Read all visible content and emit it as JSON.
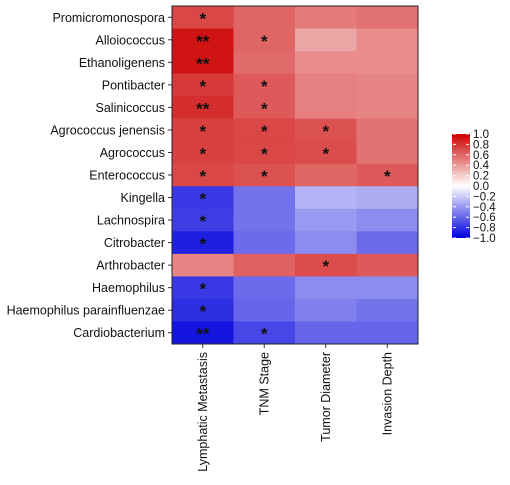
{
  "chart_data": {
    "type": "heatmap",
    "title": "",
    "xlabel": "",
    "ylabel": "",
    "columns": [
      "Lymphatic Metastasis",
      "TNM Stage",
      "Tumor Diameter",
      "Invasion Depth"
    ],
    "rows": [
      "Promicromonospora",
      "Alloiococcus",
      "Ethanoligenens",
      "Pontibacter",
      "Salinicoccus",
      "Agrococcus jenensis",
      "Agrococcus",
      "Enterococcus",
      "Kingella",
      "Lachnospira",
      "Citrobacter",
      "Arthrobacter",
      "Haemophilus",
      "Haemophilus parainfluenzae",
      "Cardiobacterium"
    ],
    "values": [
      [
        0.72,
        0.6,
        0.52,
        0.55
      ],
      [
        0.92,
        0.6,
        0.35,
        0.45
      ],
      [
        0.92,
        0.58,
        0.45,
        0.45
      ],
      [
        0.78,
        0.65,
        0.5,
        0.48
      ],
      [
        0.82,
        0.65,
        0.5,
        0.48
      ],
      [
        0.75,
        0.72,
        0.68,
        0.55
      ],
      [
        0.75,
        0.72,
        0.7,
        0.55
      ],
      [
        0.72,
        0.68,
        0.6,
        0.65
      ],
      [
        -0.78,
        -0.55,
        -0.3,
        -0.32
      ],
      [
        -0.76,
        -0.55,
        -0.4,
        -0.45
      ],
      [
        -0.88,
        -0.58,
        -0.45,
        -0.58
      ],
      [
        0.48,
        0.62,
        0.7,
        0.65
      ],
      [
        -0.78,
        -0.58,
        -0.45,
        -0.45
      ],
      [
        -0.82,
        -0.6,
        -0.5,
        -0.55
      ],
      [
        -0.92,
        -0.72,
        -0.6,
        -0.6
      ]
    ],
    "significance": [
      [
        "*",
        "",
        "",
        ""
      ],
      [
        "**",
        "*",
        "",
        ""
      ],
      [
        "**",
        "",
        "",
        ""
      ],
      [
        "*",
        "*",
        "",
        ""
      ],
      [
        "**",
        "*",
        "",
        ""
      ],
      [
        "*",
        "*",
        "*",
        ""
      ],
      [
        "*",
        "*",
        "*",
        ""
      ],
      [
        "*",
        "*",
        "",
        "*"
      ],
      [
        "*",
        "",
        "",
        ""
      ],
      [
        "*",
        "",
        "",
        ""
      ],
      [
        "*",
        "",
        "",
        ""
      ],
      [
        "",
        "",
        "*",
        ""
      ],
      [
        "*",
        "",
        "",
        ""
      ],
      [
        "*",
        "",
        "",
        ""
      ],
      [
        "**",
        "*",
        "",
        ""
      ]
    ],
    "legend": {
      "position": "right",
      "ticks": [
        "1.0",
        "0.8",
        "0.6",
        "0.4",
        "0.2",
        "0.0",
        "−0.2",
        "−0.4",
        "−0.6",
        "−0.8",
        "−1.0"
      ],
      "tick_values": [
        1.0,
        0.8,
        0.6,
        0.4,
        0.2,
        0.0,
        -0.2,
        -0.4,
        -0.6,
        -0.8,
        -1.0
      ],
      "range": [
        -1,
        1
      ],
      "colors": {
        "low": "#0000dd",
        "mid": "#ffffff",
        "high": "#cc0000"
      }
    }
  }
}
